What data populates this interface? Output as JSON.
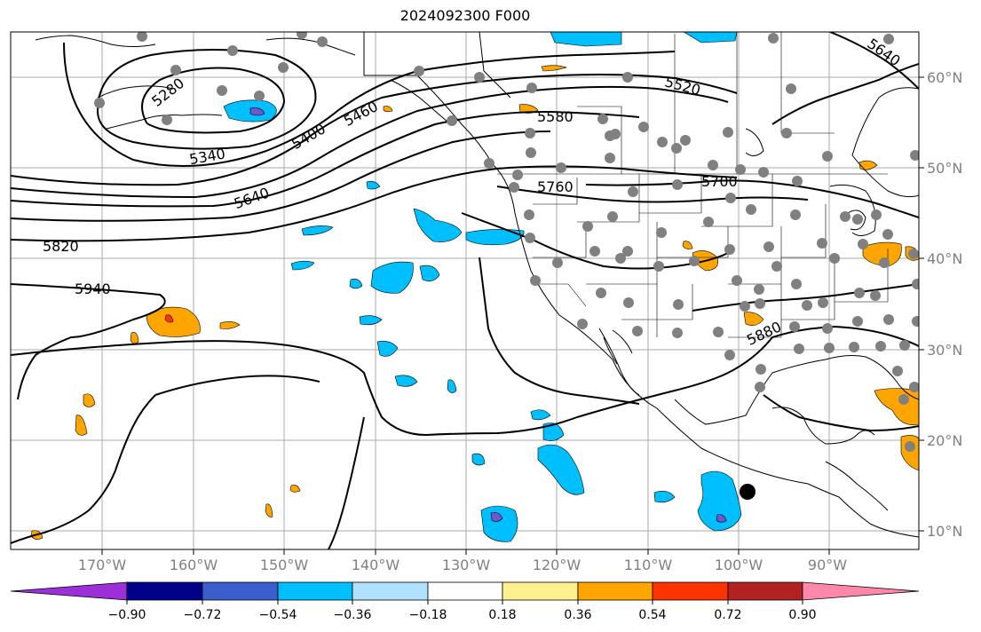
{
  "title": "2024092300 F000",
  "map": {
    "lon_labels": [
      "170°W",
      "160°W",
      "150°W",
      "140°W",
      "130°W",
      "120°W",
      "110°W",
      "100°W",
      "90°W"
    ],
    "lat_labels": [
      "60°N",
      "50°N",
      "40°N",
      "30°N",
      "20°N",
      "10°N"
    ],
    "contour_labels": [
      "5280",
      "5340",
      "5400",
      "5460",
      "5520",
      "5580",
      "5640",
      "5640",
      "5700",
      "5760",
      "5820",
      "5880",
      "5940"
    ],
    "gridline_color": "#a9a9a9",
    "land_outline_color": "#000000"
  },
  "legend": {
    "colorbar_ticks": [
      "−0.90",
      "−0.72",
      "−0.54",
      "−0.36",
      "−0.18",
      "0.18",
      "0.36",
      "0.54",
      "0.72",
      "0.90"
    ],
    "colors": [
      "#9b30d9",
      "#00008b",
      "#3a5fcd",
      "#00bfff",
      "#b0e2ff",
      "#ffffff",
      "#fff08f",
      "#ffa500",
      "#ff3300",
      "#b22222",
      "#ff88aa"
    ]
  }
}
